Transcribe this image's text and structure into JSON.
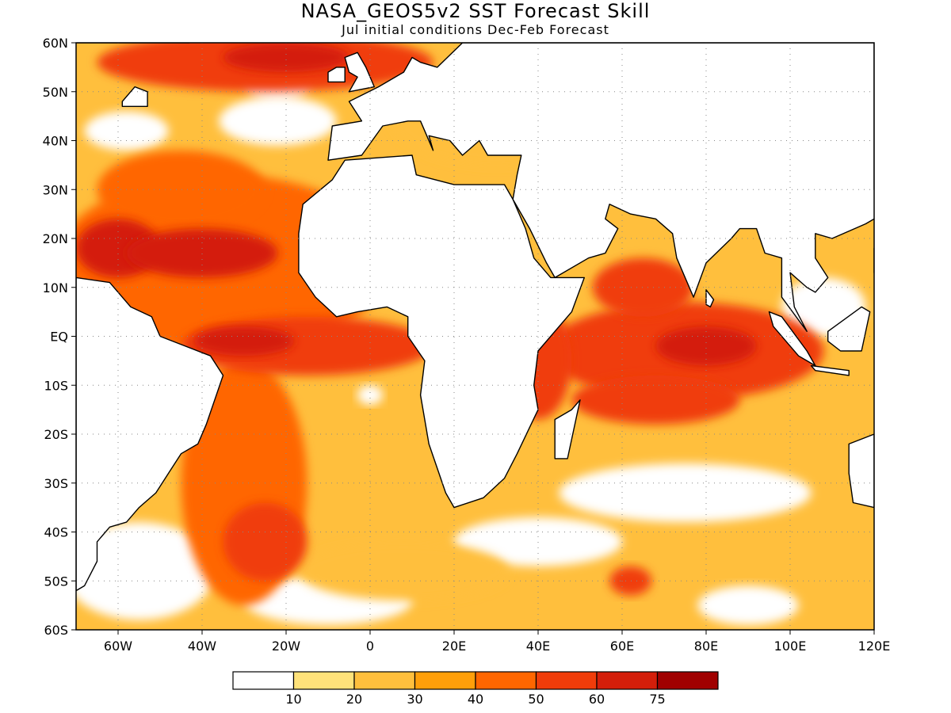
{
  "title": "NASA_GEOS5v2 SST Forecast Skill",
  "subtitle": "Jul initial conditions   Dec-Feb Forecast",
  "map": {
    "lon_range": [
      -70,
      120
    ],
    "lat_range": [
      -60,
      60
    ],
    "lat_ticks": [
      {
        "value": 60,
        "label": "60N"
      },
      {
        "value": 50,
        "label": "50N"
      },
      {
        "value": 40,
        "label": "40N"
      },
      {
        "value": 30,
        "label": "30N"
      },
      {
        "value": 20,
        "label": "20N"
      },
      {
        "value": 10,
        "label": "10N"
      },
      {
        "value": 0,
        "label": "EQ"
      },
      {
        "value": -10,
        "label": "10S"
      },
      {
        "value": -20,
        "label": "20S"
      },
      {
        "value": -30,
        "label": "30S"
      },
      {
        "value": -40,
        "label": "40S"
      },
      {
        "value": -50,
        "label": "50S"
      },
      {
        "value": -60,
        "label": "60S"
      }
    ],
    "lon_ticks": [
      {
        "value": -60,
        "label": "60W"
      },
      {
        "value": -40,
        "label": "40W"
      },
      {
        "value": -20,
        "label": "20W"
      },
      {
        "value": 0,
        "label": "0"
      },
      {
        "value": 20,
        "label": "20E"
      },
      {
        "value": 40,
        "label": "40E"
      },
      {
        "value": 60,
        "label": "60E"
      },
      {
        "value": 80,
        "label": "80E"
      },
      {
        "value": 100,
        "label": "100E"
      },
      {
        "value": 120,
        "label": "120E"
      }
    ],
    "gridlines": "dotted"
  },
  "colorbar": {
    "labels": [
      "10",
      "20",
      "30",
      "40",
      "50",
      "60",
      "75"
    ],
    "colors": [
      "#ffffff",
      "#ffe27a",
      "#ffbf3d",
      "#ff9f0a",
      "#ff6600",
      "#f03c0a",
      "#d41e0a",
      "#a00000"
    ]
  },
  "ocean_color": "#ffbf3d",
  "land_color": "#ffffff",
  "blobs": [
    {
      "lon": -35,
      "lat": 15,
      "rx": 40,
      "ry": 18,
      "level": 4
    },
    {
      "lon": -60,
      "lat": 18,
      "rx": 10,
      "ry": 6,
      "level": 6
    },
    {
      "lon": -40,
      "lat": 17,
      "rx": 18,
      "ry": 5,
      "level": 6
    },
    {
      "lon": -25,
      "lat": 56,
      "rx": 40,
      "ry": 6,
      "level": 5
    },
    {
      "lon": -20,
      "lat": 57,
      "rx": 15,
      "ry": 3,
      "level": 6
    },
    {
      "lon": -45,
      "lat": 30,
      "rx": 20,
      "ry": 8,
      "level": 4
    },
    {
      "lon": -15,
      "lat": -2,
      "rx": 30,
      "ry": 6,
      "level": 5
    },
    {
      "lon": -30,
      "lat": -1,
      "rx": 12,
      "ry": 3,
      "level": 6
    },
    {
      "lon": -30,
      "lat": -30,
      "rx": 15,
      "ry": 25,
      "level": 4
    },
    {
      "lon": -25,
      "lat": -42,
      "rx": 10,
      "ry": 8,
      "level": 5
    },
    {
      "lon": 75,
      "lat": -3,
      "rx": 33,
      "ry": 10,
      "level": 5
    },
    {
      "lon": 80,
      "lat": -2,
      "rx": 12,
      "ry": 4,
      "level": 6
    },
    {
      "lon": 65,
      "lat": 10,
      "rx": 12,
      "ry": 6,
      "level": 5
    },
    {
      "lon": 68,
      "lat": -13,
      "rx": 20,
      "ry": 5,
      "level": 5
    },
    {
      "lon": 62,
      "lat": -50,
      "rx": 5,
      "ry": 3,
      "level": 5
    },
    {
      "lon": 8,
      "lat": -48,
      "rx": 25,
      "ry": 6,
      "level": 2
    },
    {
      "lon": 30,
      "lat": 45,
      "rx": 25,
      "ry": 10,
      "level": 2
    },
    {
      "lon": 40,
      "lat": -5,
      "rx": 8,
      "ry": 12,
      "level": 5
    },
    {
      "lon": -62,
      "lat": -2,
      "rx": 8,
      "ry": 12,
      "level": 2
    }
  ],
  "white_patches": [
    {
      "lon": -22,
      "lat": 44,
      "rx": 14,
      "ry": 5
    },
    {
      "lon": -58,
      "lat": 42,
      "rx": 10,
      "ry": 4
    },
    {
      "lon": -22,
      "lat": 52,
      "rx": 8,
      "ry": 4
    },
    {
      "lon": -55,
      "lat": -48,
      "rx": 18,
      "ry": 10
    },
    {
      "lon": -10,
      "lat": -54,
      "rx": 20,
      "ry": 5
    },
    {
      "lon": 40,
      "lat": -42,
      "rx": 20,
      "ry": 5
    },
    {
      "lon": 75,
      "lat": -32,
      "rx": 30,
      "ry": 6
    },
    {
      "lon": 90,
      "lat": -55,
      "rx": 12,
      "ry": 4
    },
    {
      "lon": 0,
      "lat": -12,
      "rx": 3,
      "ry": 2
    },
    {
      "lon": -38,
      "lat": 2,
      "rx": 0,
      "ry": 0
    },
    {
      "lon": 108,
      "lat": 6,
      "rx": 10,
      "ry": 6
    },
    {
      "lon": 40,
      "lat": 55,
      "rx": 14,
      "ry": 5
    }
  ],
  "land_polygons": [
    {
      "name": "africa",
      "points": [
        [
          -17,
          21
        ],
        [
          -16,
          27
        ],
        [
          -9,
          32
        ],
        [
          -6,
          36
        ],
        [
          10,
          37
        ],
        [
          11,
          33
        ],
        [
          20,
          31
        ],
        [
          32,
          31
        ],
        [
          34,
          28
        ],
        [
          37,
          22
        ],
        [
          39,
          16
        ],
        [
          43,
          12
        ],
        [
          51,
          12
        ],
        [
          48,
          5
        ],
        [
          40,
          -3
        ],
        [
          39,
          -10
        ],
        [
          40,
          -15
        ],
        [
          35,
          -24
        ],
        [
          32,
          -29
        ],
        [
          27,
          -33
        ],
        [
          20,
          -35
        ],
        [
          18,
          -32
        ],
        [
          14,
          -22
        ],
        [
          12,
          -12
        ],
        [
          13,
          -5
        ],
        [
          9,
          0
        ],
        [
          9,
          4
        ],
        [
          4,
          6
        ],
        [
          -3,
          5
        ],
        [
          -8,
          4
        ],
        [
          -13,
          8
        ],
        [
          -17,
          13
        ]
      ]
    },
    {
      "name": "europe-asia",
      "points": [
        [
          -10,
          36
        ],
        [
          -9,
          43
        ],
        [
          -2,
          44
        ],
        [
          -5,
          48
        ],
        [
          2,
          51
        ],
        [
          8,
          54
        ],
        [
          10,
          57
        ],
        [
          12,
          56
        ],
        [
          16,
          55
        ],
        [
          22,
          60
        ],
        [
          48,
          60
        ],
        [
          55,
          60
        ],
        [
          65,
          60
        ],
        [
          80,
          60
        ],
        [
          100,
          60
        ],
        [
          120,
          60
        ],
        [
          120,
          30
        ],
        [
          122,
          25
        ],
        [
          118,
          23
        ],
        [
          110,
          20
        ],
        [
          106,
          21
        ],
        [
          106,
          16
        ],
        [
          109,
          12
        ],
        [
          106,
          9
        ],
        [
          104,
          10
        ],
        [
          100,
          13
        ],
        [
          101,
          6
        ],
        [
          104,
          1
        ],
        [
          98,
          8
        ],
        [
          98,
          16
        ],
        [
          94,
          17
        ],
        [
          92,
          22
        ],
        [
          88,
          22
        ],
        [
          86,
          20
        ],
        [
          80,
          15
        ],
        [
          77,
          8
        ],
        [
          73,
          16
        ],
        [
          72,
          21
        ],
        [
          68,
          24
        ],
        [
          62,
          25
        ],
        [
          57,
          27
        ],
        [
          56,
          24
        ],
        [
          59,
          22
        ],
        [
          56,
          17
        ],
        [
          52,
          16
        ],
        [
          44,
          12
        ],
        [
          42,
          15
        ],
        [
          38,
          22
        ],
        [
          34,
          28
        ],
        [
          35,
          33
        ],
        [
          36,
          37
        ],
        [
          28,
          37
        ],
        [
          26,
          40
        ],
        [
          22,
          37
        ],
        [
          19,
          40
        ],
        [
          14,
          41
        ],
        [
          15,
          38
        ],
        [
          12,
          44
        ],
        [
          9,
          44
        ],
        [
          3,
          43
        ],
        [
          -2,
          37
        ]
      ]
    },
    {
      "name": "south-america",
      "points": [
        [
          -70,
          12
        ],
        [
          -62,
          11
        ],
        [
          -57,
          6
        ],
        [
          -52,
          4
        ],
        [
          -50,
          0
        ],
        [
          -44,
          -2
        ],
        [
          -38,
          -4
        ],
        [
          -35,
          -8
        ],
        [
          -37,
          -13
        ],
        [
          -39,
          -18
        ],
        [
          -41,
          -22
        ],
        [
          -45,
          -24
        ],
        [
          -48,
          -28
        ],
        [
          -51,
          -32
        ],
        [
          -55,
          -35
        ],
        [
          -58,
          -38
        ],
        [
          -62,
          -39
        ],
        [
          -65,
          -42
        ],
        [
          -65,
          -46
        ],
        [
          -68,
          -51
        ],
        [
          -70,
          -52
        ],
        [
          -70,
          12
        ]
      ]
    },
    {
      "name": "greenland",
      "points": [
        [
          -70,
          60
        ],
        [
          -45,
          60
        ],
        [
          -43,
          60
        ],
        [
          -50,
          64
        ],
        [
          -70,
          64
        ]
      ]
    },
    {
      "name": "madagascar",
      "points": [
        [
          44,
          -25
        ],
        [
          47,
          -25
        ],
        [
          49,
          -17
        ],
        [
          50,
          -13
        ],
        [
          48,
          -15
        ],
        [
          44,
          -17
        ]
      ]
    },
    {
      "name": "australia",
      "points": [
        [
          114,
          -22
        ],
        [
          120,
          -20
        ],
        [
          120,
          -35
        ],
        [
          115,
          -34
        ],
        [
          114,
          -28
        ]
      ]
    },
    {
      "name": "borneo",
      "points": [
        [
          109,
          1
        ],
        [
          117,
          6
        ],
        [
          119,
          5
        ],
        [
          117,
          -3
        ],
        [
          112,
          -3
        ],
        [
          109,
          -1
        ]
      ]
    },
    {
      "name": "sumatra",
      "points": [
        [
          95,
          5
        ],
        [
          98,
          4
        ],
        [
          104,
          -3
        ],
        [
          106,
          -6
        ],
        [
          102,
          -4
        ],
        [
          96,
          2
        ]
      ]
    },
    {
      "name": "java",
      "points": [
        [
          105,
          -6
        ],
        [
          114,
          -7
        ],
        [
          114,
          -8
        ],
        [
          106,
          -7
        ]
      ]
    },
    {
      "name": "sri-lanka",
      "points": [
        [
          80,
          9.5
        ],
        [
          81.8,
          7.5
        ],
        [
          81,
          6
        ],
        [
          80,
          6.5
        ]
      ]
    },
    {
      "name": "uk",
      "points": [
        [
          -5,
          50
        ],
        [
          1,
          51
        ],
        [
          -1,
          55
        ],
        [
          -3,
          58
        ],
        [
          -6,
          57
        ],
        [
          -5,
          54
        ],
        [
          -3,
          53
        ]
      ]
    },
    {
      "name": "ireland",
      "points": [
        [
          -10,
          52
        ],
        [
          -6,
          52
        ],
        [
          -6,
          55
        ],
        [
          -8,
          55
        ],
        [
          -10,
          54
        ]
      ]
    },
    {
      "name": "newfoundland",
      "points": [
        [
          -59,
          47
        ],
        [
          -53,
          47
        ],
        [
          -53,
          50
        ],
        [
          -56,
          51
        ],
        [
          -59,
          48
        ]
      ]
    },
    {
      "name": "iceland",
      "points": [
        [
          -24,
          65
        ],
        [
          -13,
          65
        ],
        [
          -13,
          63
        ],
        [
          -24,
          63
        ]
      ]
    },
    {
      "name": "philippines",
      "points": [
        [
          120,
          18
        ],
        [
          122,
          17
        ],
        [
          122,
          12
        ],
        [
          120,
          13
        ]
      ]
    }
  ]
}
